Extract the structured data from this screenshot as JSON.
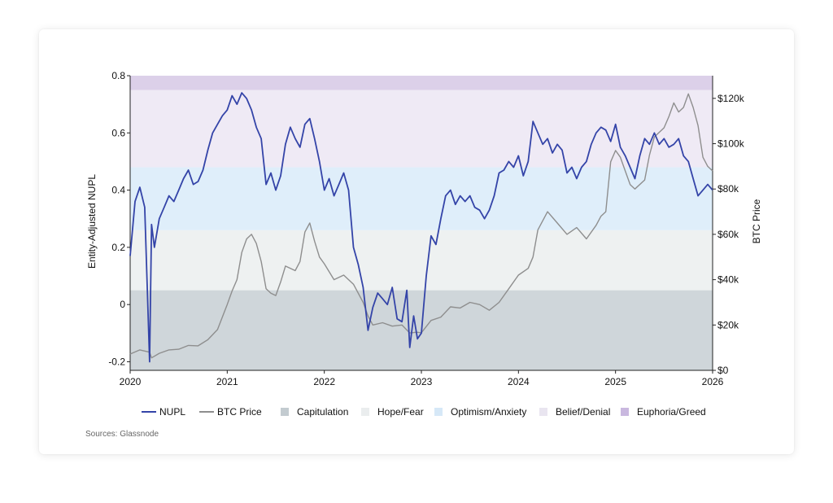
{
  "chart_data": {
    "type": "line",
    "ylabel_left": "Entity-Adjusted NUPL",
    "ylabel_right": "BTC Price",
    "xlim": [
      2020,
      2026
    ],
    "ylim_left": [
      -0.23,
      0.8
    ],
    "ylim_right": [
      0,
      130000
    ],
    "x_ticks": [
      "2020",
      "2021",
      "2022",
      "2023",
      "2024",
      "2025",
      "2026"
    ],
    "y_ticks_left": [
      "-0.2",
      "0",
      "0.2",
      "0.4",
      "0.6",
      "0.8"
    ],
    "y_ticks_right": [
      "$0",
      "$20k",
      "$40k",
      "$60k",
      "$80k",
      "$100k",
      "$120k"
    ],
    "legend_position": "bottom",
    "bands": [
      {
        "name": "Capitulation",
        "from": -0.23,
        "to": 0.05,
        "color": "#cfd6da"
      },
      {
        "name": "Hope/Fear",
        "from": 0.05,
        "to": 0.26,
        "color": "#eef1f1"
      },
      {
        "name": "Optimism/Anxiety",
        "from": 0.26,
        "to": 0.48,
        "color": "#dfeefa"
      },
      {
        "name": "Belief/Denial",
        "from": 0.48,
        "to": 0.75,
        "color": "#efeaf5"
      },
      {
        "name": "Euphoria/Greed",
        "from": 0.75,
        "to": 0.8,
        "color": "#dcd0e9"
      }
    ],
    "series": [
      {
        "name": "NUPL",
        "axis": "left",
        "color": "#3444a8",
        "x": [
          2020.0,
          2020.05,
          2020.1,
          2020.15,
          2020.2,
          2020.22,
          2020.25,
          2020.3,
          2020.35,
          2020.4,
          2020.45,
          2020.5,
          2020.55,
          2020.6,
          2020.65,
          2020.7,
          2020.75,
          2020.8,
          2020.85,
          2020.9,
          2020.95,
          2021.0,
          2021.05,
          2021.1,
          2021.15,
          2021.2,
          2021.25,
          2021.3,
          2021.35,
          2021.4,
          2021.45,
          2021.5,
          2021.55,
          2021.6,
          2021.65,
          2021.7,
          2021.75,
          2021.8,
          2021.85,
          2021.9,
          2021.95,
          2022.0,
          2022.05,
          2022.1,
          2022.15,
          2022.2,
          2022.25,
          2022.3,
          2022.35,
          2022.4,
          2022.45,
          2022.5,
          2022.55,
          2022.6,
          2022.65,
          2022.7,
          2022.75,
          2022.8,
          2022.85,
          2022.88,
          2022.92,
          2022.96,
          2023.0,
          2023.05,
          2023.1,
          2023.15,
          2023.2,
          2023.25,
          2023.3,
          2023.35,
          2023.4,
          2023.45,
          2023.5,
          2023.55,
          2023.6,
          2023.65,
          2023.7,
          2023.75,
          2023.8,
          2023.85,
          2023.9,
          2023.95,
          2024.0,
          2024.05,
          2024.1,
          2024.15,
          2024.2,
          2024.25,
          2024.3,
          2024.35,
          2024.4,
          2024.45,
          2024.5,
          2024.55,
          2024.6,
          2024.65,
          2024.7,
          2024.75,
          2024.8,
          2024.85,
          2024.9,
          2024.95,
          2025.0,
          2025.05,
          2025.1,
          2025.15,
          2025.2,
          2025.25,
          2025.3,
          2025.35,
          2025.4,
          2025.45,
          2025.5,
          2025.55,
          2025.6,
          2025.65,
          2025.7,
          2025.75,
          2025.8,
          2025.85,
          2025.9,
          2025.95,
          2026.0
        ],
        "y": [
          0.17,
          0.36,
          0.41,
          0.34,
          -0.2,
          0.28,
          0.2,
          0.3,
          0.34,
          0.38,
          0.36,
          0.4,
          0.44,
          0.47,
          0.42,
          0.43,
          0.47,
          0.54,
          0.6,
          0.63,
          0.66,
          0.68,
          0.73,
          0.7,
          0.74,
          0.72,
          0.68,
          0.62,
          0.58,
          0.42,
          0.46,
          0.4,
          0.45,
          0.56,
          0.62,
          0.58,
          0.55,
          0.63,
          0.65,
          0.58,
          0.5,
          0.4,
          0.44,
          0.38,
          0.42,
          0.46,
          0.4,
          0.2,
          0.14,
          0.06,
          -0.09,
          -0.01,
          0.04,
          0.02,
          0.0,
          0.06,
          -0.05,
          -0.06,
          0.05,
          -0.15,
          -0.04,
          -0.12,
          -0.1,
          0.1,
          0.24,
          0.21,
          0.3,
          0.38,
          0.4,
          0.35,
          0.38,
          0.36,
          0.38,
          0.34,
          0.33,
          0.3,
          0.33,
          0.38,
          0.46,
          0.47,
          0.5,
          0.48,
          0.52,
          0.45,
          0.5,
          0.64,
          0.6,
          0.56,
          0.58,
          0.53,
          0.56,
          0.54,
          0.46,
          0.48,
          0.44,
          0.48,
          0.5,
          0.56,
          0.6,
          0.62,
          0.61,
          0.57,
          0.63,
          0.55,
          0.52,
          0.48,
          0.44,
          0.52,
          0.58,
          0.56,
          0.6,
          0.56,
          0.58,
          0.55,
          0.56,
          0.58,
          0.52,
          0.5,
          0.44,
          0.38,
          0.4,
          0.42,
          0.4
        ]
      },
      {
        "name": "BTC Price",
        "axis": "right",
        "color": "#8e8e8e",
        "x": [
          2020.0,
          2020.1,
          2020.2,
          2020.22,
          2020.3,
          2020.4,
          2020.5,
          2020.6,
          2020.7,
          2020.8,
          2020.9,
          2021.0,
          2021.05,
          2021.1,
          2021.15,
          2021.2,
          2021.25,
          2021.3,
          2021.35,
          2021.4,
          2021.45,
          2021.5,
          2021.55,
          2021.6,
          2021.7,
          2021.75,
          2021.8,
          2021.85,
          2021.9,
          2021.95,
          2022.0,
          2022.1,
          2022.2,
          2022.3,
          2022.4,
          2022.45,
          2022.5,
          2022.6,
          2022.7,
          2022.8,
          2022.88,
          2022.95,
          2023.0,
          2023.1,
          2023.2,
          2023.3,
          2023.4,
          2023.5,
          2023.6,
          2023.7,
          2023.8,
          2023.9,
          2024.0,
          2024.1,
          2024.15,
          2024.2,
          2024.3,
          2024.4,
          2024.5,
          2024.6,
          2024.7,
          2024.8,
          2024.85,
          2024.9,
          2024.95,
          2025.0,
          2025.05,
          2025.1,
          2025.15,
          2025.2,
          2025.3,
          2025.35,
          2025.4,
          2025.5,
          2025.55,
          2025.6,
          2025.65,
          2025.7,
          2025.75,
          2025.8,
          2025.85,
          2025.9,
          2025.95,
          2026.0
        ],
        "y": [
          7200,
          9000,
          8000,
          5500,
          7500,
          9000,
          9300,
          11000,
          10800,
          13500,
          18000,
          29000,
          35000,
          40000,
          52000,
          58000,
          60000,
          56000,
          48000,
          36000,
          34000,
          33000,
          39000,
          46000,
          44000,
          48000,
          61000,
          65000,
          57000,
          50000,
          47000,
          40000,
          42000,
          38000,
          30000,
          24000,
          20000,
          21000,
          19500,
          20000,
          16500,
          16800,
          16600,
          22000,
          23500,
          28000,
          27500,
          30000,
          29000,
          26500,
          30000,
          36000,
          42000,
          45000,
          50000,
          62000,
          70000,
          65000,
          60000,
          63000,
          58000,
          64000,
          68000,
          70000,
          92000,
          97000,
          94000,
          88000,
          82000,
          80000,
          84000,
          95000,
          103000,
          107000,
          112000,
          118000,
          114000,
          116000,
          122000,
          116000,
          108000,
          94000,
          90000,
          88000
        ]
      }
    ]
  },
  "legend": [
    {
      "label": "NUPL",
      "kind": "line",
      "color": "#3444a8"
    },
    {
      "label": "BTC Price",
      "kind": "line",
      "color": "#8e8e8e"
    },
    {
      "label": "Capitulation",
      "kind": "box",
      "color": "#c3cbd0"
    },
    {
      "label": "Hope/Fear",
      "kind": "box",
      "color": "#eaedee"
    },
    {
      "label": "Optimism/Anxiety",
      "kind": "box",
      "color": "#d6e8f7"
    },
    {
      "label": "Belief/Denial",
      "kind": "box",
      "color": "#e9e5f0"
    },
    {
      "label": "Euphoria/Greed",
      "kind": "box",
      "color": "#c9b8df"
    }
  ],
  "source_text": "Sources: Glassnode"
}
